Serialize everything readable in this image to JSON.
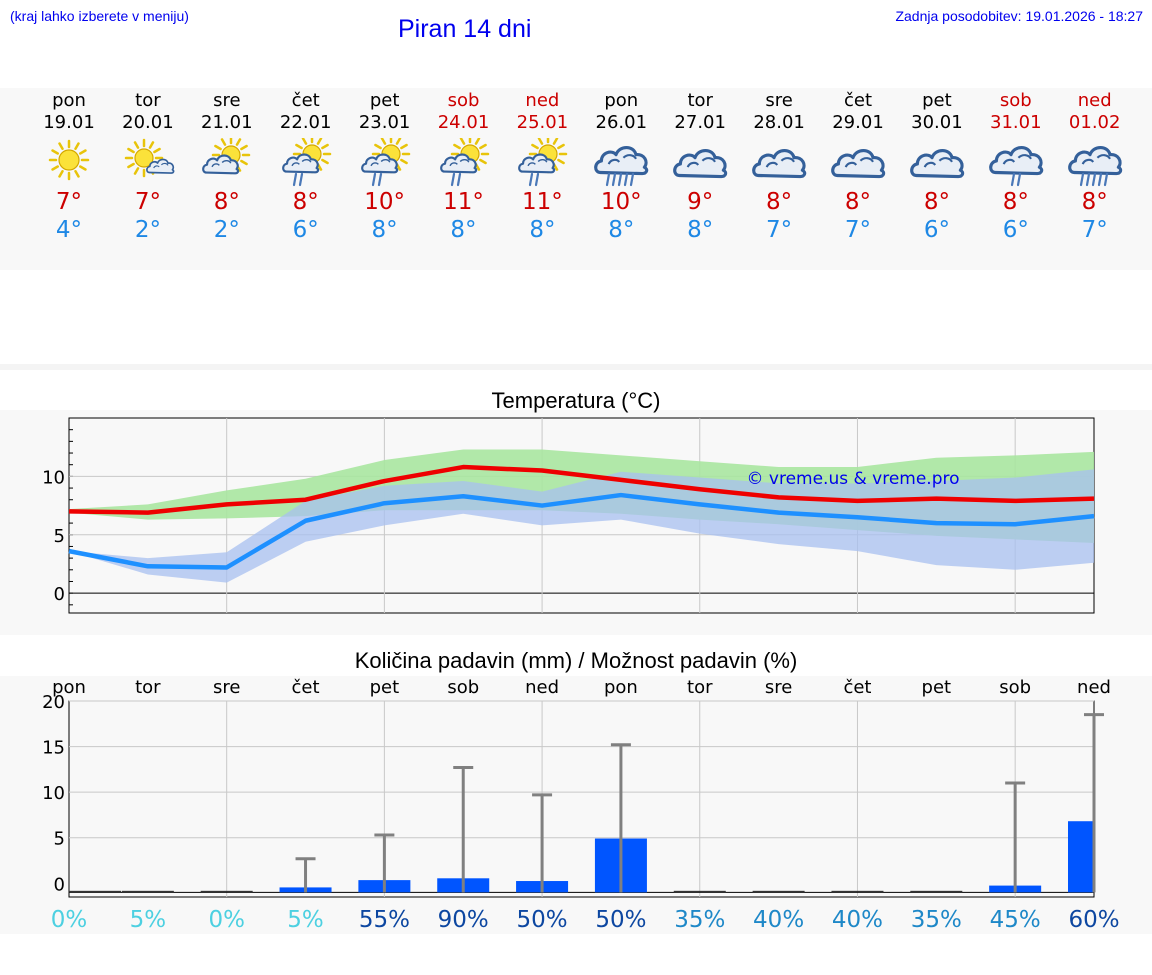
{
  "header": {
    "location_hint": "(kraj lahko izberete v meniju)",
    "title": "Piran 14 dni",
    "updated": "Zadnja posodobitev: 19.01.2026 - 18:27"
  },
  "days": [
    {
      "name": "pon",
      "date": "19.01",
      "weekend": false,
      "icon": "sun-icon",
      "max": "7°",
      "min": "4°"
    },
    {
      "name": "tor",
      "date": "20.01",
      "weekend": false,
      "icon": "sun-small-cloud-icon",
      "max": "7°",
      "min": "2°"
    },
    {
      "name": "sre",
      "date": "21.01",
      "weekend": false,
      "icon": "sun-cloud-icon",
      "max": "8°",
      "min": "2°"
    },
    {
      "name": "čet",
      "date": "22.01",
      "weekend": false,
      "icon": "sun-cloud-rain-icon",
      "max": "8°",
      "min": "6°"
    },
    {
      "name": "pet",
      "date": "23.01",
      "weekend": false,
      "icon": "sun-cloud-rain-icon",
      "max": "10°",
      "min": "8°"
    },
    {
      "name": "sob",
      "date": "24.01",
      "weekend": true,
      "icon": "sun-cloud-rain-icon",
      "max": "11°",
      "min": "8°"
    },
    {
      "name": "ned",
      "date": "25.01",
      "weekend": true,
      "icon": "sun-cloud-rain-icon",
      "max": "11°",
      "min": "8°"
    },
    {
      "name": "pon",
      "date": "26.01",
      "weekend": false,
      "icon": "cloud-heavy-rain-icon",
      "max": "10°",
      "min": "8°"
    },
    {
      "name": "tor",
      "date": "27.01",
      "weekend": false,
      "icon": "cloud-icon",
      "max": "9°",
      "min": "8°"
    },
    {
      "name": "sre",
      "date": "28.01",
      "weekend": false,
      "icon": "cloud-icon",
      "max": "8°",
      "min": "7°"
    },
    {
      "name": "čet",
      "date": "29.01",
      "weekend": false,
      "icon": "cloud-icon",
      "max": "8°",
      "min": "7°"
    },
    {
      "name": "pet",
      "date": "30.01",
      "weekend": false,
      "icon": "cloud-icon",
      "max": "8°",
      "min": "6°"
    },
    {
      "name": "sob",
      "date": "31.01",
      "weekend": true,
      "icon": "cloud-rain-icon",
      "max": "8°",
      "min": "6°"
    },
    {
      "name": "ned",
      "date": "01.02",
      "weekend": true,
      "icon": "cloud-heavy-rain-icon",
      "max": "8°",
      "min": "7°"
    }
  ],
  "colors": {
    "max_line": "#ee0000",
    "min_line": "#1e90ff",
    "max_band": "#a8e6a0",
    "min_band": "#a8c0f0",
    "overlap_band": "#7fc4a8",
    "bar": "#0055ff",
    "errbar": "#808080",
    "weekend": "#cc0000",
    "pct_low": "#4dd0e1",
    "pct_mid": "#1e88c8",
    "pct_high": "#0d47a1"
  },
  "chart_data": [
    {
      "type": "line",
      "title": "Temperatura (°C)",
      "watermark": "© vreme.us & vreme.pro",
      "ylim": [
        -1.7,
        15
      ],
      "yticks": [
        0,
        5,
        10
      ],
      "grid": true,
      "x": [
        0,
        1,
        2,
        3,
        4,
        5,
        6,
        7,
        8,
        9,
        10,
        11,
        12,
        13
      ],
      "series": [
        {
          "name": "max",
          "values": [
            7.0,
            6.9,
            7.6,
            8.0,
            9.6,
            10.8,
            10.5,
            9.7,
            8.9,
            8.2,
            7.9,
            8.1,
            7.9,
            8.1
          ],
          "band_low": [
            6.9,
            6.3,
            6.4,
            6.6,
            7.1,
            7.1,
            7.1,
            6.8,
            6.3,
            5.9,
            5.4,
            4.9,
            4.6,
            4.3
          ],
          "band_high": [
            7.2,
            7.6,
            8.8,
            9.8,
            11.4,
            12.3,
            12.3,
            11.8,
            11.3,
            10.8,
            10.8,
            11.6,
            11.8,
            12.1
          ]
        },
        {
          "name": "min",
          "values": [
            3.6,
            2.3,
            2.2,
            6.2,
            7.7,
            8.3,
            7.5,
            8.4,
            7.6,
            6.9,
            6.5,
            6.0,
            5.9,
            6.6
          ],
          "band_low": [
            3.6,
            1.6,
            0.9,
            4.4,
            5.8,
            6.8,
            5.8,
            6.3,
            5.1,
            4.2,
            3.6,
            2.4,
            2.0,
            2.6
          ],
          "band_high": [
            3.6,
            3.0,
            3.5,
            7.9,
            9.2,
            9.6,
            8.7,
            10.4,
            9.9,
            9.4,
            9.4,
            9.6,
            9.9,
            10.6
          ]
        }
      ]
    },
    {
      "type": "bar",
      "title": "Količina padavin (mm) / Možnost padavin (%)",
      "categories": [
        "pon",
        "tor",
        "sre",
        "čet",
        "pet",
        "sob",
        "ned",
        "pon",
        "tor",
        "sre",
        "čet",
        "pet",
        "sob",
        "ned"
      ],
      "ylim": [
        -1.5,
        20
      ],
      "yticks": [
        0,
        5,
        10,
        15,
        20
      ],
      "grid": true,
      "values": [
        0,
        0,
        0,
        0.1,
        0.9,
        1.1,
        0.8,
        5.9,
        0,
        0,
        0,
        0,
        0.3,
        7.8
      ],
      "error_high": [
        0,
        0,
        0,
        2.7,
        5.3,
        12.7,
        9.7,
        15.2,
        0,
        0,
        0,
        0,
        11.0,
        18.5
      ],
      "probability": [
        "0%",
        "5%",
        "0%",
        "5%",
        "55%",
        "90%",
        "50%",
        "50%",
        "35%",
        "40%",
        "40%",
        "35%",
        "45%",
        "60%"
      ],
      "probability_values": [
        0,
        5,
        0,
        5,
        55,
        90,
        50,
        50,
        35,
        40,
        40,
        35,
        45,
        60
      ]
    }
  ]
}
